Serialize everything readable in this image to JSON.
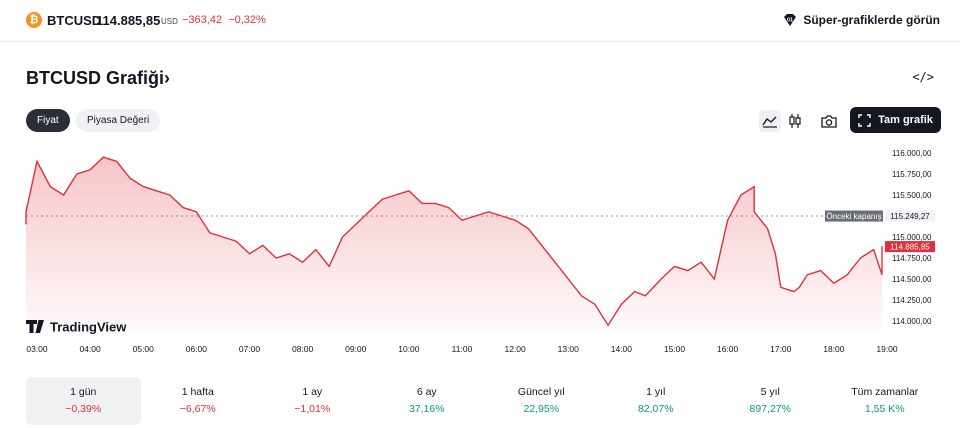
{
  "header": {
    "coin_glyph": "₿",
    "symbol": "BTCUSD",
    "price": "114.885,85",
    "currency": "USD",
    "change": "−363,42",
    "change_pct": "−0,32%",
    "super_charts": "Süper-grafiklerde görün"
  },
  "title": "BTCUSD Grafiği",
  "title_chevron": "›",
  "embed_glyph": "</>",
  "tabs": [
    {
      "label": "Fiyat",
      "selected": true
    },
    {
      "label": "Piyasa Değeri",
      "selected": false
    }
  ],
  "toolbar": {
    "line_icon": "area-chart-icon",
    "candle_icon": "candlestick-icon",
    "camera_icon": "camera-icon",
    "full_label": "Tam grafik"
  },
  "chart_data": {
    "type": "area",
    "color": "#e0303a",
    "watermark": "TradingView",
    "y_ticks": [
      114000,
      114250,
      114500,
      114750,
      115000,
      115250,
      115500,
      115750,
      116000
    ],
    "y_tick_labels": [
      "114.000,00",
      "114.250,00",
      "114.500,00",
      "114.750,00",
      "115.000,00",
      "115.250,00",
      "115.500,00",
      "115.750,00",
      "116.000,00"
    ],
    "x_labels": [
      "03:00",
      "04:00",
      "05:00",
      "06:00",
      "07:00",
      "08:00",
      "09:00",
      "10:00",
      "11:00",
      "12:00",
      "13:00",
      "14:00",
      "15:00",
      "16:00",
      "17:00",
      "18:00",
      "19:00"
    ],
    "prev_close_label": "Önceki kapanış",
    "prev_close": 115249.27,
    "prev_close_text": "115.249,27",
    "last_price": 114885.85,
    "last_price_text": "114.885,85",
    "x": [
      2.6,
      2.75,
      3,
      3.25,
      3.5,
      3.75,
      4,
      4.25,
      4.5,
      4.75,
      5,
      5.25,
      5.5,
      5.75,
      6,
      6.25,
      6.5,
      6.75,
      7,
      7.25,
      7.5,
      7.75,
      8,
      8.25,
      8.5,
      8.75,
      9,
      9.25,
      9.5,
      9.75,
      10,
      10.25,
      10.5,
      10.75,
      11,
      11.25,
      11.5,
      11.75,
      12,
      12.25,
      12.5,
      12.75,
      13,
      13.25,
      13.5,
      13.75,
      14,
      14.25,
      14.45,
      14.6,
      14.75,
      15,
      15.25,
      15.5,
      15.75,
      16,
      16.25,
      16.5,
      16.5,
      16.75,
      16.9,
      17,
      17.25,
      17.35,
      17.5,
      17.75,
      18,
      18.25,
      18.5,
      18.75,
      19,
      19.2
    ],
    "y": [
      115150,
      115300,
      115900,
      115600,
      115500,
      115750,
      115800,
      115950,
      115900,
      115700,
      115600,
      115550,
      115500,
      115350,
      115300,
      115050,
      115000,
      114950,
      114800,
      114900,
      114750,
      114800,
      114700,
      114850,
      114650,
      115000,
      115150,
      115300,
      115450,
      115500,
      115550,
      115400,
      115400,
      115350,
      115200,
      115250,
      115300,
      115250,
      115200,
      115100,
      114900,
      114700,
      114500,
      114300,
      114200,
      113950,
      114200,
      114350,
      114300,
      114400,
      114500,
      114650,
      114600,
      114700,
      114500,
      115200,
      115500,
      115600,
      115300,
      115100,
      114800,
      114400,
      114350,
      114400,
      114550,
      114600,
      114450,
      114550,
      114750,
      114850,
      114550,
      114890
    ]
  },
  "periods": [
    {
      "label": "1 gün",
      "value": "−0,39%",
      "sign": "neg",
      "selected": true
    },
    {
      "label": "1 hafta",
      "value": "−6,67%",
      "sign": "neg",
      "selected": false
    },
    {
      "label": "1 ay",
      "value": "−1,01%",
      "sign": "neg",
      "selected": false
    },
    {
      "label": "6 ay",
      "value": "37,16%",
      "sign": "pos",
      "selected": false
    },
    {
      "label": "Güncel yıl",
      "value": "22,95%",
      "sign": "pos",
      "selected": false
    },
    {
      "label": "1 yıl",
      "value": "82,07%",
      "sign": "pos",
      "selected": false
    },
    {
      "label": "5 yıl",
      "value": "897,27%",
      "sign": "pos",
      "selected": false
    },
    {
      "label": "Tüm zamanlar",
      "value": "1,55 K%",
      "sign": "pos",
      "selected": false
    }
  ]
}
